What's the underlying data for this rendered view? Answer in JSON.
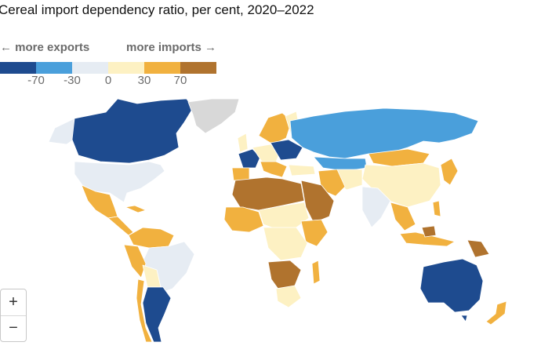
{
  "title": "Cereal import dependency ratio, per cent, 2020–2022",
  "legend": {
    "left_label": "← more exports",
    "right_label": "more imports →",
    "ticks": [
      "-70",
      "-30",
      "0",
      "30",
      "70"
    ],
    "colors": [
      "#1e4b8f",
      "#4a9fdb",
      "#e6ecf3",
      "#fdf1c3",
      "#f1b13f",
      "#b0732e"
    ]
  },
  "map": {
    "ocean": "#ffffff",
    "no_data": "#d8d8d8"
  },
  "zoom": {
    "in_label": "+",
    "out_label": "−"
  }
}
